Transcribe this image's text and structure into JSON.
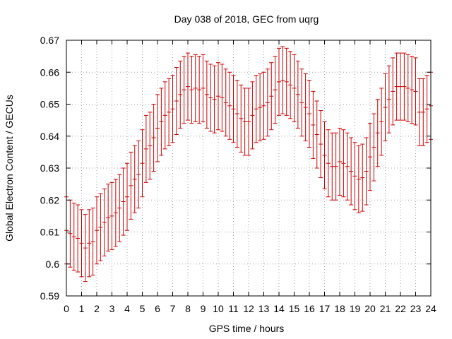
{
  "chart_data": {
    "type": "errorbar",
    "title": "Day 038 of 2018, GEC from uqrg",
    "xlabel": "GPS time / hours",
    "ylabel": "Global Electron Content / GECUs",
    "xlim": [
      0,
      24
    ],
    "ylim": [
      0.59,
      0.67
    ],
    "x_ticks": [
      0,
      1,
      2,
      3,
      4,
      5,
      6,
      7,
      8,
      9,
      10,
      11,
      12,
      13,
      14,
      15,
      16,
      17,
      18,
      19,
      20,
      21,
      22,
      23,
      24
    ],
    "x_tick_labels": [
      "0",
      "1",
      "2",
      "3",
      "4",
      "5",
      "6",
      "7",
      "8",
      "9",
      "10",
      "11",
      "12",
      "13",
      "14",
      "15",
      "16",
      "17",
      "18",
      "19",
      "20",
      "21",
      "22",
      "23",
      "24"
    ],
    "y_ticks": [
      0.59,
      0.6,
      0.61,
      0.62,
      0.63,
      0.64,
      0.65,
      0.66,
      0.67
    ],
    "y_tick_labels": [
      "0.59",
      "0.6",
      "0.61",
      "0.62",
      "0.63",
      "0.64",
      "0.65",
      "0.66",
      "0.67"
    ],
    "grid": true,
    "error": 0.0105,
    "color": "#cc0000",
    "x": [
      0,
      0.25,
      0.5,
      0.75,
      1,
      1.25,
      1.5,
      1.75,
      2,
      2.25,
      2.5,
      2.75,
      3,
      3.25,
      3.5,
      3.75,
      4,
      4.25,
      4.5,
      4.75,
      5,
      5.25,
      5.5,
      5.75,
      6,
      6.25,
      6.5,
      6.75,
      7,
      7.25,
      7.5,
      7.75,
      8,
      8.25,
      8.5,
      8.75,
      9,
      9.25,
      9.5,
      9.75,
      10,
      10.25,
      10.5,
      10.75,
      11,
      11.25,
      11.5,
      11.75,
      12,
      12.25,
      12.5,
      12.75,
      13,
      13.25,
      13.5,
      13.75,
      14,
      14.25,
      14.5,
      14.75,
      15,
      15.25,
      15.5,
      15.75,
      16,
      16.25,
      16.5,
      16.75,
      17,
      17.25,
      17.5,
      17.75,
      18,
      18.25,
      18.5,
      18.75,
      19,
      19.25,
      19.5,
      19.75,
      20,
      20.25,
      20.5,
      20.75,
      21,
      21.25,
      21.5,
      21.75,
      22,
      22.25,
      22.5,
      22.75,
      23,
      23.25,
      23.5,
      23.75,
      24
    ],
    "y": [
      0.6105,
      0.6095,
      0.6085,
      0.608,
      0.6065,
      0.605,
      0.6065,
      0.607,
      0.6105,
      0.6115,
      0.613,
      0.6145,
      0.615,
      0.616,
      0.6175,
      0.6195,
      0.621,
      0.6245,
      0.6265,
      0.628,
      0.6315,
      0.636,
      0.637,
      0.6395,
      0.6425,
      0.6445,
      0.6465,
      0.6475,
      0.6485,
      0.651,
      0.653,
      0.6545,
      0.6555,
      0.6545,
      0.655,
      0.6545,
      0.655,
      0.653,
      0.652,
      0.6515,
      0.6525,
      0.652,
      0.6505,
      0.6495,
      0.6485,
      0.647,
      0.6455,
      0.6445,
      0.6445,
      0.6465,
      0.6485,
      0.649,
      0.6495,
      0.6505,
      0.6525,
      0.6545,
      0.657,
      0.6575,
      0.657,
      0.656,
      0.655,
      0.653,
      0.6505,
      0.649,
      0.647,
      0.6435,
      0.6405,
      0.6375,
      0.634,
      0.6315,
      0.6305,
      0.6305,
      0.632,
      0.6315,
      0.6305,
      0.629,
      0.6275,
      0.6265,
      0.627,
      0.629,
      0.6335,
      0.6365,
      0.641,
      0.6445,
      0.649,
      0.6515,
      0.654,
      0.6555,
      0.6555,
      0.6555,
      0.655,
      0.6545,
      0.654,
      0.6475,
      0.6475,
      0.6485,
      0.6495
    ]
  }
}
